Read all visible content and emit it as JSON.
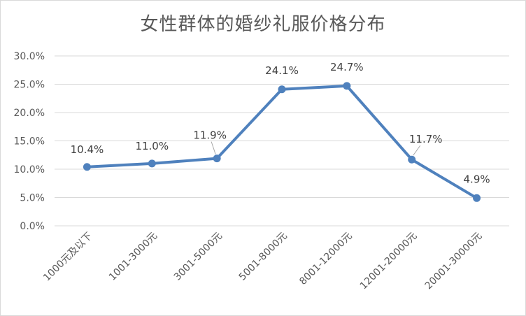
{
  "chart_data": {
    "type": "line",
    "title": "女性群体的婚纱礼服价格分布",
    "xlabel": "",
    "ylabel": "",
    "categories": [
      "1000元及以下",
      "1001-3000元",
      "3001-5000元",
      "5001-8000元",
      "8001-12000元",
      "12001-20000元",
      "20001-30000元"
    ],
    "series": [
      {
        "values": [
          10.4,
          11.0,
          11.9,
          24.1,
          24.7,
          11.7,
          4.9
        ],
        "labels": [
          "10.4%",
          "11.0%",
          "11.9%",
          "24.1%",
          "24.7%",
          "11.7%",
          "4.9%"
        ]
      }
    ],
    "y_ticks": [
      "0.0%",
      "5.0%",
      "10.0%",
      "15.0%",
      "20.0%",
      "25.0%",
      "30.0%"
    ],
    "ylim": [
      0,
      30
    ],
    "grid": true,
    "legend": "none",
    "colors": {
      "line": "#4F81BD",
      "grid": "#d9d9d9",
      "text": "#595959"
    }
  }
}
